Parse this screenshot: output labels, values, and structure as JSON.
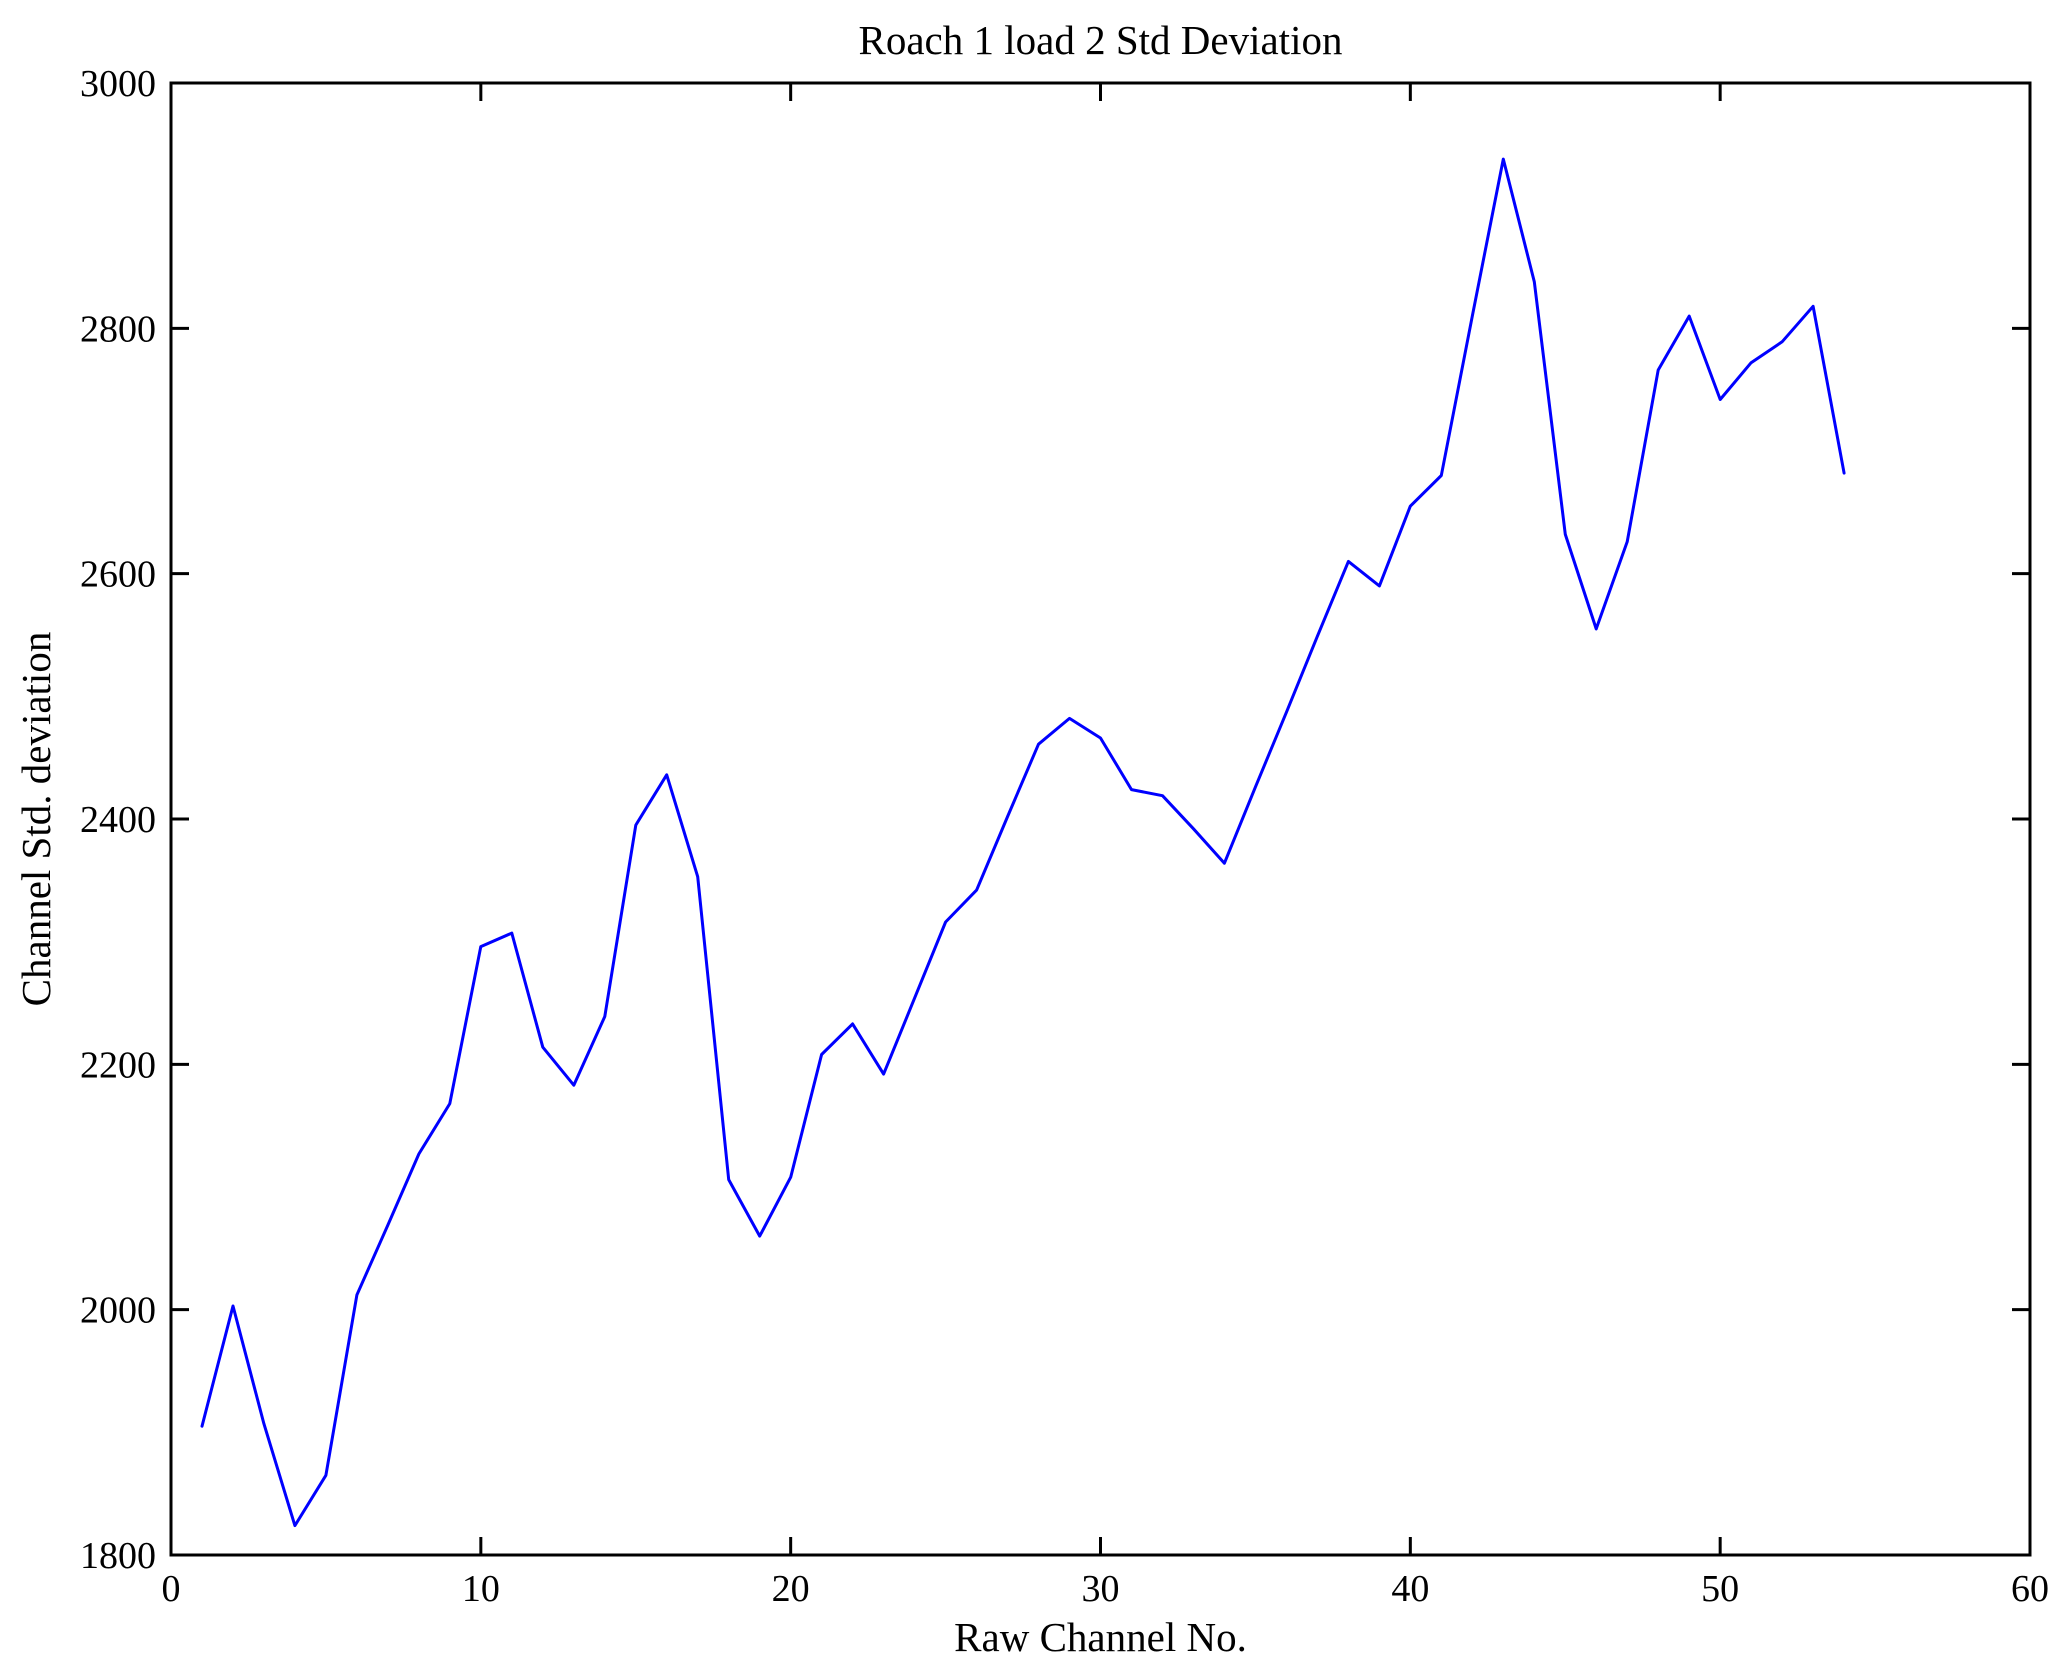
{
  "figure": {
    "title": "Roach 1 load 2 Std Deviation",
    "xlabel": "Raw Channel No.",
    "ylabel": "Channel Std. deviation",
    "background": "#ffffff",
    "axis_color": "#000000",
    "line_color": "#0000ff"
  },
  "chart_data": {
    "type": "line",
    "title": "Roach 1 load 2 Std Deviation",
    "xlabel": "Raw Channel No.",
    "ylabel": "Channel Std. deviation",
    "xlim": [
      0,
      60
    ],
    "ylim": [
      1800,
      3000
    ],
    "xticks": [
      0,
      10,
      20,
      30,
      40,
      50,
      60
    ],
    "yticks": [
      1800,
      2000,
      2200,
      2400,
      2600,
      2800,
      3000
    ],
    "grid": false,
    "legend_position": "none",
    "series": [
      {
        "name": "Channel std deviation",
        "color": "#0000ff",
        "x": [
          1,
          2,
          3,
          4,
          5,
          6,
          7,
          8,
          9,
          10,
          11,
          12,
          13,
          14,
          15,
          16,
          17,
          18,
          19,
          20,
          21,
          22,
          23,
          24,
          25,
          26,
          27,
          28,
          29,
          30,
          31,
          32,
          33,
          34,
          35,
          36,
          37,
          38,
          39,
          40,
          41,
          42,
          43,
          44,
          45,
          46,
          47,
          48,
          49,
          50,
          51,
          52,
          53,
          54
        ],
        "y": [
          1905,
          2003,
          1907,
          1824,
          1865,
          2012,
          2069,
          2127,
          2168,
          2296,
          2307,
          2214,
          2183,
          2239,
          2395,
          2436,
          2353,
          2106,
          2060,
          2108,
          2208,
          2233,
          2192,
          2254,
          2316,
          2342,
          2402,
          2461,
          2482,
          2466,
          2424,
          2419,
          2392,
          2364,
          2426,
          2487,
          2549,
          2610,
          2590,
          2655,
          2680,
          2810,
          2938,
          2838,
          2632,
          2555,
          2626,
          2766,
          2810,
          2742,
          2772,
          2789,
          2818,
          2682
        ]
      }
    ]
  }
}
